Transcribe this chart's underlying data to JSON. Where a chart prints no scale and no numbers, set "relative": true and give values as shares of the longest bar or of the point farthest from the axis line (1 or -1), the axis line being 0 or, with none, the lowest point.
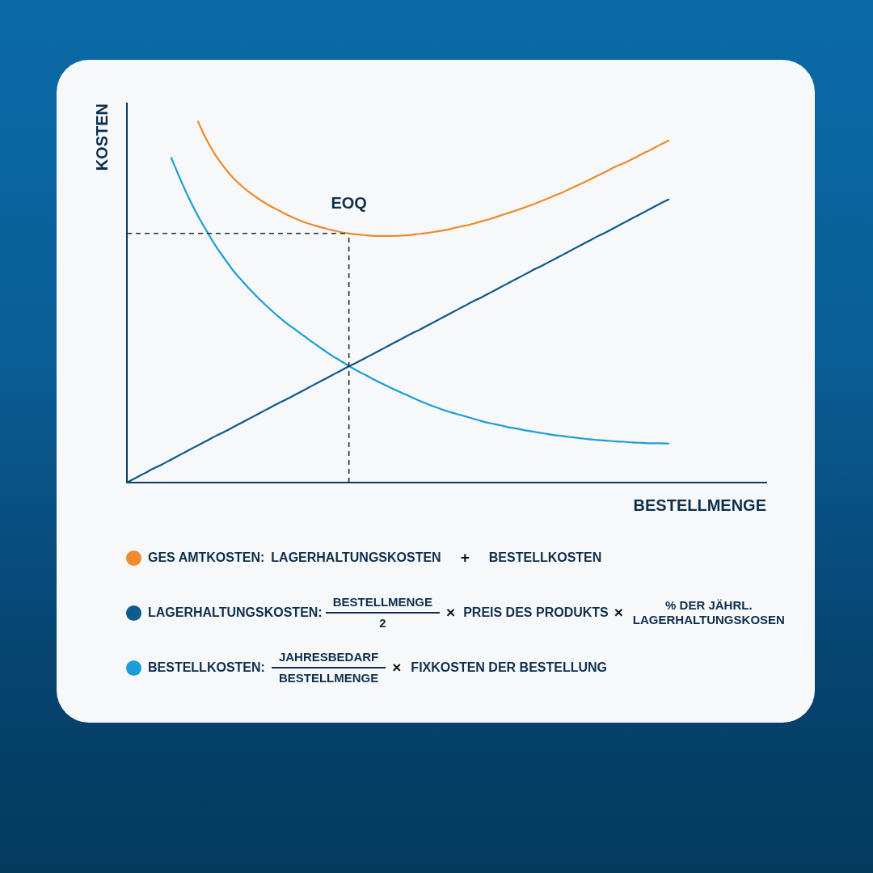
{
  "chart_data": {
    "type": "line",
    "relative": true,
    "xlabel": "BESTELLMENGE",
    "ylabel": "KOSTEN",
    "grid": false,
    "marker": "none",
    "legend": "bottom",
    "categories": [
      null,
      null,
      null,
      null,
      null,
      null,
      null,
      null,
      null,
      null,
      null,
      null,
      null,
      null,
      null,
      null,
      null,
      null,
      null,
      null,
      null,
      null,
      null,
      null,
      null,
      null,
      null,
      null,
      null,
      null,
      null,
      null,
      null,
      null,
      null,
      null,
      null,
      null,
      null,
      null,
      null,
      null,
      null,
      null,
      null,
      null,
      null,
      null,
      null,
      null,
      null,
      null,
      null,
      null,
      null,
      null,
      null,
      null,
      null,
      null,
      null,
      null,
      null,
      null,
      null,
      null,
      null,
      null,
      null,
      null,
      null,
      null,
      null
    ],
    "series": [
      {
        "name": "GES AMTKOSTEN:",
        "color": "#ef8a2d",
        "values": [
          null,
          null,
          null,
          null,
          null,
          null,
          null,
          null,
          1,
          0.948,
          0.906,
          0.872,
          0.843,
          0.82,
          0.8,
          0.783,
          0.768,
          0.755,
          0.742,
          0.731,
          0.721,
          0.713,
          0.706,
          0.7,
          0.694,
          0.69,
          0.687,
          0.685,
          0.683,
          0.683,
          0.683,
          0.684,
          0.686,
          0.689,
          0.692,
          0.696,
          0.7,
          0.706,
          0.711,
          0.717,
          0.724,
          0.731,
          0.739,
          0.747,
          0.755,
          0.764,
          0.773,
          0.783,
          0.793,
          0.803,
          0.815,
          0.826,
          0.838,
          0.85,
          0.862,
          0.875,
          0.885,
          0.897,
          0.91,
          0.922,
          0.935,
          0.947,
          null,
          null,
          null,
          null,
          null,
          null,
          null,
          null,
          null,
          null,
          null
        ]
      },
      {
        "name": "LAGERHALTUNGSKOSTEN:",
        "color": "#0d5a8c",
        "values": [
          0,
          0.013,
          0.026,
          0.039,
          0.051,
          0.064,
          0.077,
          0.09,
          0.103,
          0.116,
          0.129,
          0.141,
          0.154,
          0.167,
          0.18,
          0.193,
          0.206,
          0.219,
          0.231,
          0.244,
          0.257,
          0.27,
          0.283,
          0.296,
          0.309,
          0.322,
          0.334,
          0.347,
          0.36,
          0.373,
          0.386,
          0.399,
          0.412,
          0.424,
          0.437,
          0.45,
          0.463,
          0.476,
          0.489,
          0.502,
          0.514,
          0.527,
          0.54,
          0.553,
          0.566,
          0.579,
          0.592,
          0.604,
          0.617,
          0.63,
          0.643,
          0.656,
          0.669,
          0.682,
          0.694,
          0.707,
          0.72,
          0.733,
          0.746,
          0.759,
          0.772,
          0.784,
          null,
          null,
          null,
          null,
          null,
          null,
          null,
          null,
          null,
          null,
          null
        ]
      },
      {
        "name": "BESTELLKOSTEN:",
        "color": "#1a9ed8",
        "values": [
          null,
          null,
          null,
          null,
          null,
          0.899,
          0.841,
          0.787,
          0.739,
          0.696,
          0.655,
          0.62,
          0.586,
          0.558,
          0.531,
          0.506,
          0.483,
          0.461,
          0.441,
          0.423,
          0.405,
          0.387,
          0.37,
          0.353,
          0.338,
          0.323,
          0.309,
          0.296,
          0.283,
          0.271,
          0.259,
          0.248,
          0.237,
          0.226,
          0.216,
          0.207,
          0.198,
          0.191,
          0.184,
          0.177,
          0.17,
          0.164,
          0.159,
          0.153,
          0.149,
          0.144,
          0.14,
          0.136,
          0.132,
          0.129,
          0.126,
          0.123,
          0.12,
          0.118,
          0.116,
          0.114,
          0.113,
          0.111,
          0.11,
          0.109,
          0.109,
          0.108,
          null,
          null,
          null,
          null,
          null,
          null,
          null,
          null,
          null,
          null,
          null
        ]
      }
    ],
    "ref_lines": [
      {
        "axis": "y",
        "value": 0.69,
        "label": "EOQ",
        "color": "#1e2b3a",
        "line_style": "dashed"
      }
    ],
    "annotations": [
      "LAGERHALTUNGSKOSTEN",
      "+",
      "BESTELLKOSTEN",
      "BESTELLMENGE",
      "2",
      "×",
      "PREIS DES PRODUKTS",
      "×",
      "% DER JÄHRL. LAGERHALTUNGSKOSEN",
      "JAHRESBEDARF",
      "BESTELLMENGE",
      "×",
      "FIXKOSTEN DER BESTELLUNG"
    ]
  }
}
